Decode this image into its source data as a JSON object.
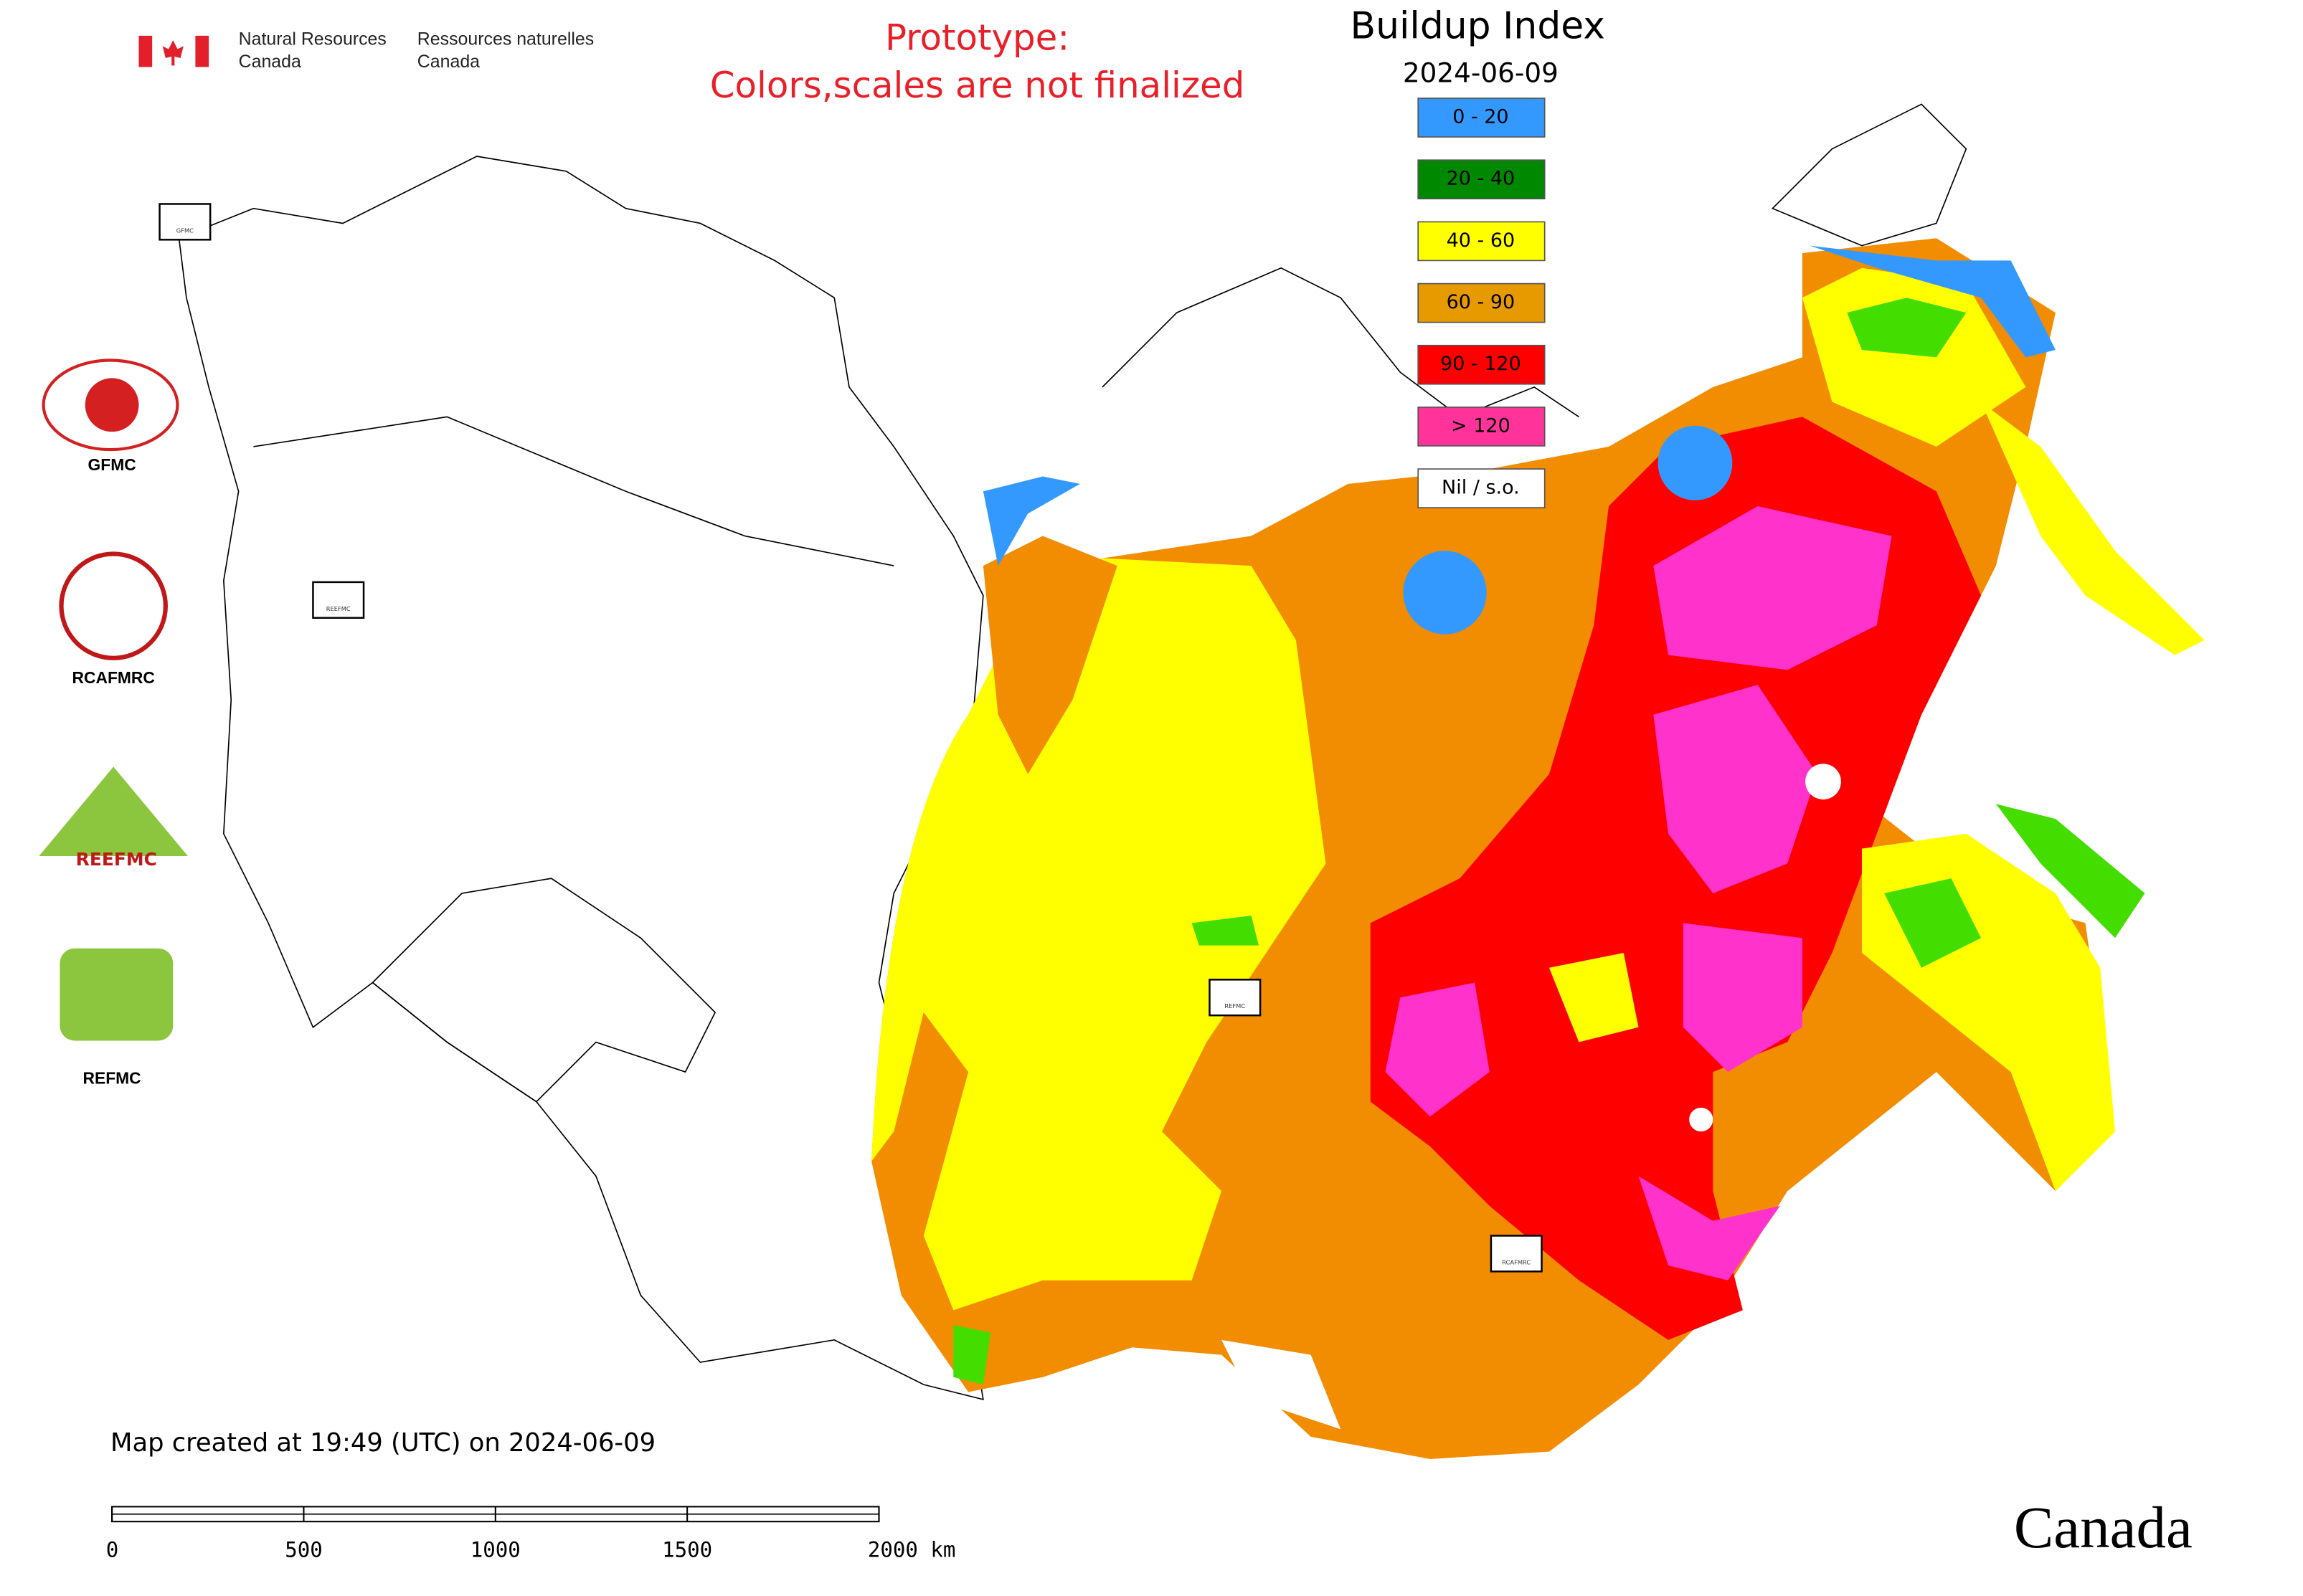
{
  "header": {
    "department_en": [
      "Natural Resources",
      "Canada"
    ],
    "department_fr": [
      "Ressources naturelles",
      "Canada"
    ],
    "notice": [
      "Prototype:",
      "Colors,scales are not finalized"
    ]
  },
  "map": {
    "title": "Buildup Index",
    "date": "2024-06-09",
    "legend": [
      {
        "label": "0 - 20",
        "color": "#3399ff"
      },
      {
        "label": "20 - 40",
        "color": "#008800"
      },
      {
        "label": "40 - 60",
        "color": "#ffff00"
      },
      {
        "label": "60 - 90",
        "color": "#e69a00"
      },
      {
        "label": "90 - 120",
        "color": "#ff0000"
      },
      {
        "label": "> 120",
        "color": "#ff3399"
      },
      {
        "label": "Nil / s.o.",
        "color": "#ffffff"
      }
    ],
    "centers": [
      "GFMC",
      "REEFMC",
      "REFMC",
      "RCAFMRC"
    ],
    "credit": "Map created at 19:49 (UTC) on 2024-06-09",
    "scale_bar": {
      "ticks": [
        0,
        500,
        1000,
        1500,
        {
          "value": 2000,
          "label": "2000 km"
        }
      ]
    }
  },
  "logos": [
    "GFMC",
    "RCAFMRC",
    "REEFMC",
    "REFMC"
  ],
  "wordmark": "Canada"
}
